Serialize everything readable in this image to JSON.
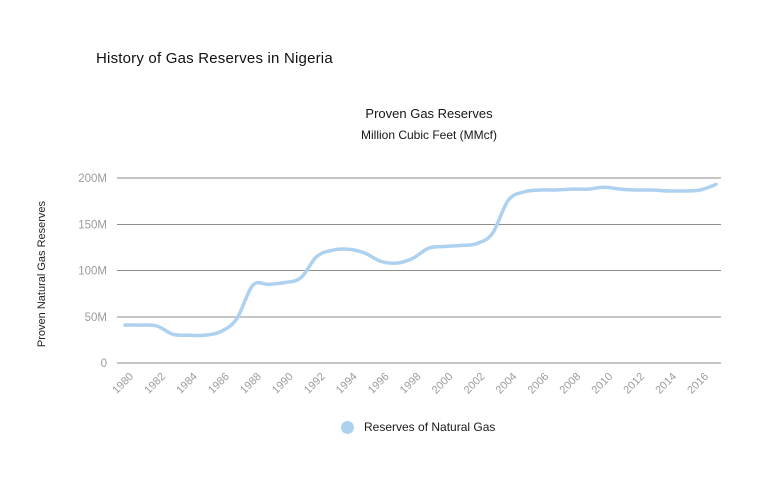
{
  "page": {
    "title": "History of Gas Reserves in Nigeria",
    "background": "#ffffff"
  },
  "chart": {
    "title": "Proven Gas Reserves",
    "subtitle": "Million Cubic Feet (MMcf)",
    "y_axis_title": "Proven Natural Gas Reserves",
    "legend": {
      "label": "Reserves of Natural Gas"
    },
    "colors": {
      "line": "#aed1f0",
      "grid": "#8e8e8e",
      "tick_label": "#9c9c9c",
      "title_text": "#111111"
    }
  },
  "chart_data": {
    "type": "line",
    "title": "Proven Gas Reserves",
    "subtitle": "Million Cubic Feet (MMcf)",
    "xlabel": "",
    "ylabel": "Proven Natural Gas Reserves",
    "unit": "Million Cubic Feet (MMcf)",
    "smooth": true,
    "grid": "horizontal",
    "legend_position": "bottom",
    "ylim": [
      0,
      200
    ],
    "ytick_values": [
      0,
      50,
      100,
      150,
      200
    ],
    "ytick_labels": [
      "0",
      "50M",
      "100M",
      "150M",
      "200M"
    ],
    "xtick_values": [
      1980,
      1982,
      1984,
      1986,
      1988,
      1990,
      1992,
      1994,
      1996,
      1998,
      2000,
      2002,
      2004,
      2006,
      2008,
      2010,
      2012,
      2014,
      2016
    ],
    "x": [
      1980,
      1981,
      1982,
      1983,
      1984,
      1985,
      1986,
      1987,
      1988,
      1989,
      1990,
      1991,
      1992,
      1993,
      1994,
      1995,
      1996,
      1997,
      1998,
      1999,
      2000,
      2001,
      2002,
      2003,
      2004,
      2005,
      2006,
      2007,
      2008,
      2009,
      2010,
      2011,
      2012,
      2013,
      2014,
      2015,
      2016,
      2017
    ],
    "series": [
      {
        "name": "Reserves of Natural Gas",
        "color": "#aed1f0",
        "values": [
          41,
          41,
          40,
          31,
          30,
          30,
          34,
          48,
          84,
          85,
          87,
          92,
          115,
          122,
          123,
          119,
          110,
          108,
          113,
          124,
          126,
          127,
          129,
          140,
          176,
          185,
          187,
          187,
          188,
          188,
          190,
          188,
          187,
          187,
          186,
          186,
          187,
          193
        ]
      }
    ]
  }
}
